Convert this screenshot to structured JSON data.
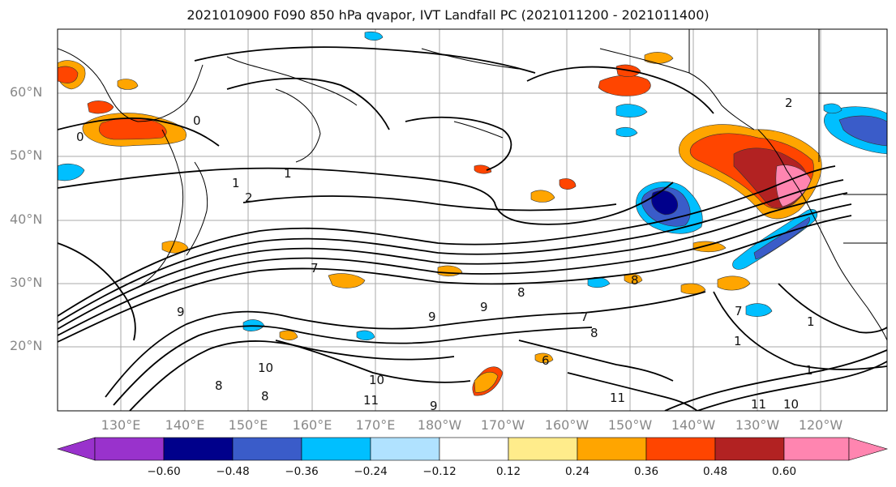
{
  "title": "2021010900 F090 850 hPa qvapor, IVT Landfall PC (2021011200 - 2021011400)",
  "lat_labels": [
    "60°N",
    "50°N",
    "40°N",
    "30°N",
    "20°N"
  ],
  "lon_labels": [
    "130°E",
    "140°E",
    "150°E",
    "160°E",
    "170°E",
    "180°W",
    "170°W",
    "160°W",
    "150°W",
    "140°W",
    "130°W",
    "120°W"
  ],
  "colorbar": {
    "colors": [
      "#9932cc",
      "#00008b",
      "#3a5cc9",
      "#00bfff",
      "#b0e2ff",
      "#ffffff",
      "#ffec8b",
      "#ffa500",
      "#ff4500",
      "#b22222",
      "#ff85b0"
    ],
    "tick_labels": [
      "−0.60",
      "−0.48",
      "−0.36",
      "−0.24",
      "−0.12",
      "0.12",
      "0.24",
      "0.36",
      "0.48",
      "0.60"
    ]
  },
  "contour_labels": [
    "0",
    "0",
    "1",
    "1",
    "2",
    "7",
    "8",
    "8",
    "9",
    "9",
    "9",
    "9",
    "10",
    "10",
    "11",
    "11",
    "8",
    "7",
    "6",
    "1",
    "1",
    "1",
    "2",
    "11",
    "10",
    "8",
    "8",
    "7"
  ]
}
